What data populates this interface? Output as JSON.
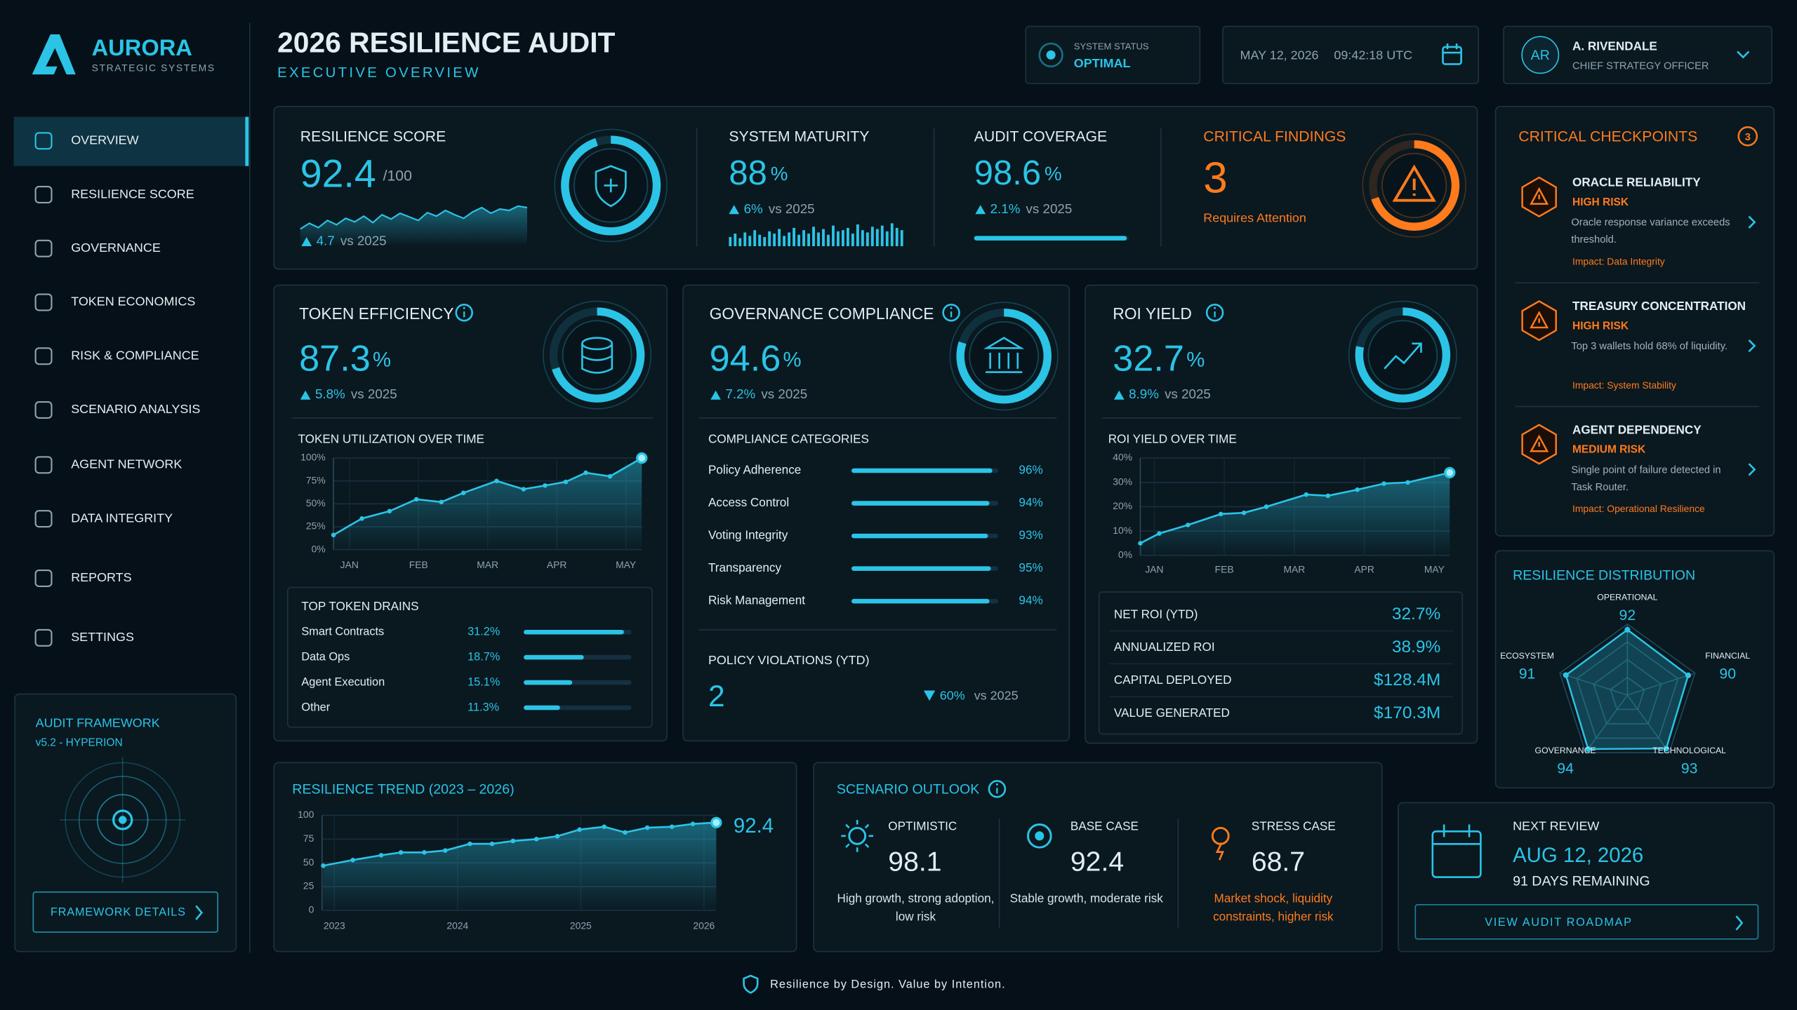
{
  "brand": {
    "name": "AURORA",
    "tagline": "STRATEGIC SYSTEMS"
  },
  "nav": [
    "OVERVIEW",
    "RESILIENCE SCORE",
    "GOVERNANCE",
    "TOKEN ECONOMICS",
    "RISK & COMPLIANCE",
    "SCENARIO ANALYSIS",
    "AGENT NETWORK",
    "DATA INTEGRITY",
    "REPORTS",
    "SETTINGS"
  ],
  "framework": {
    "title": "AUDIT FRAMEWORK",
    "version": "v5.2 - HYPERION",
    "button": "FRAMEWORK DETAILS"
  },
  "header": {
    "title": "2026 RESILIENCE AUDIT",
    "subtitle": "EXECUTIVE OVERVIEW",
    "status_label": "SYSTEM STATUS",
    "status": "OPTIMAL",
    "date": "MAY 12, 2026",
    "time": "09:42:18 UTC"
  },
  "user": {
    "initials": "AR",
    "name": "A. RIVENDALE",
    "role": "CHIEF STRATEGY OFFICER"
  },
  "summary": {
    "resilience": {
      "label": "RESILIENCE SCORE",
      "value": 92.4,
      "unit": "/100",
      "delta": "4.7",
      "compare": "vs 2025",
      "trend": [
        40,
        48,
        42,
        52,
        46,
        55,
        50,
        58,
        49,
        60,
        54,
        62,
        57,
        52,
        63,
        58,
        66,
        60,
        55,
        64,
        70,
        62,
        68,
        66,
        72,
        70
      ]
    },
    "maturity": {
      "label": "SYSTEM MATURITY",
      "value": 88,
      "unit": "%",
      "delta": "6%",
      "compare": "vs 2025",
      "bars": [
        40,
        55,
        35,
        60,
        45,
        70,
        50,
        40,
        65,
        55,
        75,
        45,
        60,
        80,
        50,
        70,
        55,
        85,
        60,
        75,
        50,
        90,
        65,
        70,
        80,
        55,
        95,
        70,
        60,
        85,
        75,
        90,
        65,
        100,
        80,
        70
      ]
    },
    "coverage": {
      "label": "AUDIT COVERAGE",
      "value": 98.6,
      "unit": "%",
      "range": [
        0,
        100
      ],
      "delta": "2.1%",
      "compare": "vs 2025"
    },
    "findings": {
      "label": "CRITICAL FINDINGS",
      "value": 3,
      "note": "Requires Attention"
    }
  },
  "token": {
    "title": "TOKEN EFFICIENCY",
    "value": 87.3,
    "unit": "%",
    "delta": "5.8%",
    "compare": "vs 2025",
    "chart_data": {
      "type": "area",
      "title": "TOKEN UTILIZATION OVER TIME",
      "color": "#2bc4e6",
      "x": [
        -0.23,
        0.18,
        0.58,
        0.97,
        1.33,
        1.65,
        2.13,
        2.52,
        2.83,
        3.13,
        3.42,
        3.77,
        4.23
      ],
      "values": [
        16,
        34,
        42,
        55,
        52,
        62,
        75,
        66,
        70,
        74,
        84,
        80,
        100
      ],
      "xlim": [
        -0.23,
        4.23
      ],
      "xticks": [
        {
          "value": 0,
          "label": "JAN"
        },
        {
          "value": 1,
          "label": "FEB"
        },
        {
          "value": 2,
          "label": "MAR"
        },
        {
          "value": 3,
          "label": "APR"
        },
        {
          "value": 4,
          "label": "MAY"
        }
      ],
      "ylim": [
        0,
        100
      ],
      "yticks": [
        {
          "value": 0,
          "label": "0%"
        },
        {
          "value": 25,
          "label": "25%"
        },
        {
          "value": 50,
          "label": "50%"
        },
        {
          "value": 75,
          "label": "75%"
        },
        {
          "value": 100,
          "label": "100%"
        }
      ]
    },
    "drains": {
      "title": "TOP TOKEN DRAINS",
      "categories": [
        "Smart Contracts",
        "Data Ops",
        "Agent Execution",
        "Other"
      ],
      "values": [
        31.2,
        18.7,
        15.1,
        11.3
      ],
      "value_labels": [
        "31.2%",
        "18.7%",
        "15.1%",
        "11.3%"
      ]
    }
  },
  "governance": {
    "title": "GOVERNANCE COMPLIANCE",
    "value": 94.6,
    "unit": "%",
    "delta": "7.2%",
    "compare": "vs 2025",
    "compliance": {
      "title": "COMPLIANCE CATEGORIES",
      "categories": [
        "Policy Adherence",
        "Access Control",
        "Voting Integrity",
        "Transparency",
        "Risk Management"
      ],
      "values": [
        96,
        94,
        93,
        95,
        94
      ],
      "value_labels": [
        "96%",
        "94%",
        "93%",
        "95%",
        "94%"
      ],
      "xlim": [
        0,
        100
      ]
    },
    "violations": {
      "title": "POLICY VIOLATIONS (YTD)",
      "value": 2,
      "delta": "60%",
      "compare": "vs 2025"
    }
  },
  "roi": {
    "title": "ROI YIELD",
    "value": 32.7,
    "unit": "%",
    "delta": "8.9%",
    "compare": "vs 2025",
    "chart_data": {
      "type": "area",
      "title": "ROI YIELD OVER TIME",
      "color": "#2bc4e6",
      "x": [
        -0.2,
        0.07,
        0.48,
        0.95,
        1.28,
        1.6,
        2.17,
        2.48,
        2.9,
        3.28,
        3.62,
        4.22
      ],
      "values": [
        5,
        9,
        12.5,
        17,
        17.5,
        20,
        25,
        24.5,
        27,
        29.5,
        30,
        34
      ],
      "xlim": [
        -0.2,
        4.22
      ],
      "xticks": [
        {
          "value": 0,
          "label": "JAN"
        },
        {
          "value": 1,
          "label": "FEB"
        },
        {
          "value": 2,
          "label": "MAR"
        },
        {
          "value": 3,
          "label": "APR"
        },
        {
          "value": 4,
          "label": "MAY"
        }
      ],
      "ylim": [
        0,
        40
      ],
      "yticks": [
        {
          "value": 0,
          "label": "0%"
        },
        {
          "value": 10,
          "label": "10%"
        },
        {
          "value": 20,
          "label": "20%"
        },
        {
          "value": 30,
          "label": "30%"
        },
        {
          "value": 40,
          "label": "40%"
        }
      ]
    },
    "metrics": {
      "labels": [
        "NET ROI (YTD)",
        "ANNUALIZED ROI",
        "CAPITAL DEPLOYED",
        "VALUE GENERATED"
      ],
      "values": [
        "32.7%",
        "38.9%",
        "$128.4M",
        "$170.3M"
      ]
    }
  },
  "checkpoints": {
    "title": "CRITICAL CHECKPOINTS",
    "count": 3,
    "items": [
      {
        "title": "ORACLE RELIABILITY",
        "risk": "HIGH RISK",
        "description": "Oracle response variance exceeds threshold.",
        "impact": "Impact: Data Integrity"
      },
      {
        "title": "TREASURY CONCENTRATION",
        "risk": "HIGH RISK",
        "description": "Top 3 wallets hold 68% of liquidity.",
        "impact": "Impact: System Stability"
      },
      {
        "title": "AGENT DEPENDENCY",
        "risk": "MEDIUM RISK",
        "description": "Single point of failure detected in Task Router.",
        "impact": "Impact: Operational Resilience"
      }
    ]
  },
  "distribution": {
    "chart_data": {
      "type": "radar",
      "title": "RESILIENCE DISTRIBUTION",
      "categories": [
        "OPERATIONAL",
        "FINANCIAL",
        "TECHNOLOGICAL",
        "GOVERNANCE",
        "ECOSYSTEM"
      ],
      "values": [
        92,
        90,
        93,
        94,
        91
      ],
      "rlim": [
        0,
        100
      ],
      "color": "#2bc4e6"
    }
  },
  "trend": {
    "chart_data": {
      "type": "area",
      "title": "RESILIENCE TREND (2023 – 2026)",
      "color": "#2bc4e6",
      "x": [
        2022.91,
        2023.15,
        2023.38,
        2023.54,
        2023.73,
        2023.9,
        2024.1,
        2024.28,
        2024.45,
        2024.64,
        2024.81,
        2024.99,
        2025.19,
        2025.36,
        2025.54,
        2025.74,
        2025.91,
        2026.1
      ],
      "values": [
        47,
        53,
        58,
        61,
        61,
        63,
        70,
        70,
        73,
        75,
        78,
        85,
        88,
        82,
        87,
        88,
        91,
        92.4
      ],
      "xlim": [
        2022.9,
        2026.1
      ],
      "xticks": [
        2023,
        2024,
        2025,
        2026
      ],
      "ylim": [
        0,
        100
      ],
      "yticks": [
        0,
        25,
        50,
        75,
        100
      ]
    }
  },
  "scenarios": {
    "title": "SCENARIO OUTLOOK",
    "items": [
      {
        "name": "OPTIMISTIC",
        "value": 98.1,
        "description": "High growth, strong adoption, low risk",
        "color": "#2bc4e6"
      },
      {
        "name": "BASE CASE",
        "value": 92.4,
        "description": "Stable growth, moderate risk",
        "color": "#2bc4e6"
      },
      {
        "name": "STRESS CASE",
        "value": 68.7,
        "description": "Market shock, liquidity constraints, higher risk",
        "color": "#ff7b1c"
      }
    ]
  },
  "review": {
    "label": "NEXT REVIEW",
    "date": "AUG 12, 2026",
    "remaining": "91 DAYS REMAINING",
    "button": "VIEW AUDIT ROADMAP"
  },
  "footer": "Resilience by Design. Value by Intention."
}
